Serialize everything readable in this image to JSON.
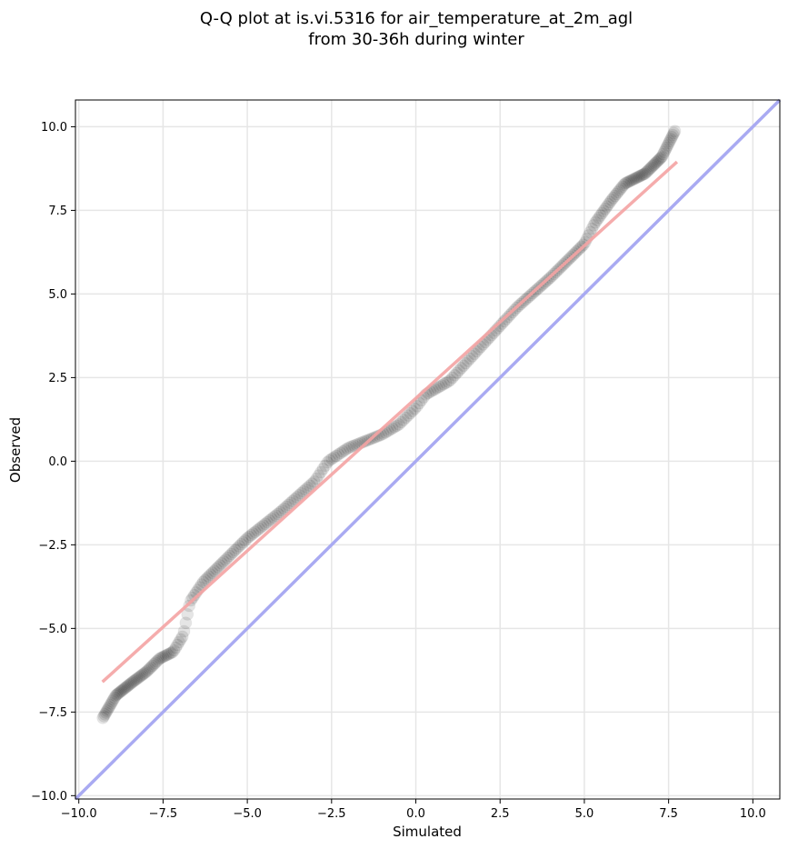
{
  "chart_data": {
    "type": "scatter",
    "title": "Q-Q plot at is.vi.5316 for air_temperature_at_2m_agl",
    "subtitle": "from 30-36h during winter",
    "xlabel": "Simulated",
    "ylabel": "Observed",
    "xlim": [
      -10.1,
      10.8
    ],
    "ylim": [
      -10.1,
      10.8
    ],
    "grid": true,
    "x_ticks": [
      -10.0,
      -7.5,
      -5.0,
      -2.5,
      0.0,
      2.5,
      5.0,
      7.5,
      10.0
    ],
    "y_ticks": [
      -10.0,
      -7.5,
      -5.0,
      -2.5,
      0.0,
      2.5,
      5.0,
      7.5,
      10.0
    ],
    "x_tick_labels": [
      "−10.0",
      "−7.5",
      "−5.0",
      "−2.5",
      "0.0",
      "2.5",
      "5.0",
      "7.5",
      "10.0"
    ],
    "y_tick_labels": [
      "−10.0",
      "−7.5",
      "−5.0",
      "−2.5",
      "0.0",
      "2.5",
      "5.0",
      "7.5",
      "10.0"
    ],
    "qq_knots": {
      "x": [
        -9.3,
        -8.9,
        -8.4,
        -8.0,
        -7.6,
        -7.2,
        -6.9,
        -6.7,
        -6.3,
        -5.9,
        -5.0,
        -4.0,
        -3.0,
        -2.6,
        -2.0,
        -1.0,
        -0.5,
        0.0,
        0.3,
        1.0,
        2.0,
        3.0,
        4.0,
        5.0,
        5.3,
        5.8,
        6.2,
        6.8,
        7.3,
        7.7
      ],
      "y": [
        -7.7,
        -7.0,
        -6.6,
        -6.3,
        -5.9,
        -5.7,
        -5.2,
        -4.2,
        -3.6,
        -3.2,
        -2.3,
        -1.5,
        -0.6,
        0.0,
        0.4,
        0.8,
        1.1,
        1.6,
        2.0,
        2.4,
        3.5,
        4.6,
        5.5,
        6.5,
        7.1,
        7.8,
        8.3,
        8.6,
        9.1,
        9.9
      ]
    },
    "fit_line": {
      "x": [
        -9.3,
        7.75
      ],
      "y": [
        -6.6,
        8.95
      ],
      "color": "#f4a3a3"
    },
    "reference_line": {
      "x": [
        -10.1,
        10.8
      ],
      "y": [
        -10.1,
        10.8
      ],
      "color": "#a9aaf2"
    },
    "marker_color": "#000000"
  }
}
